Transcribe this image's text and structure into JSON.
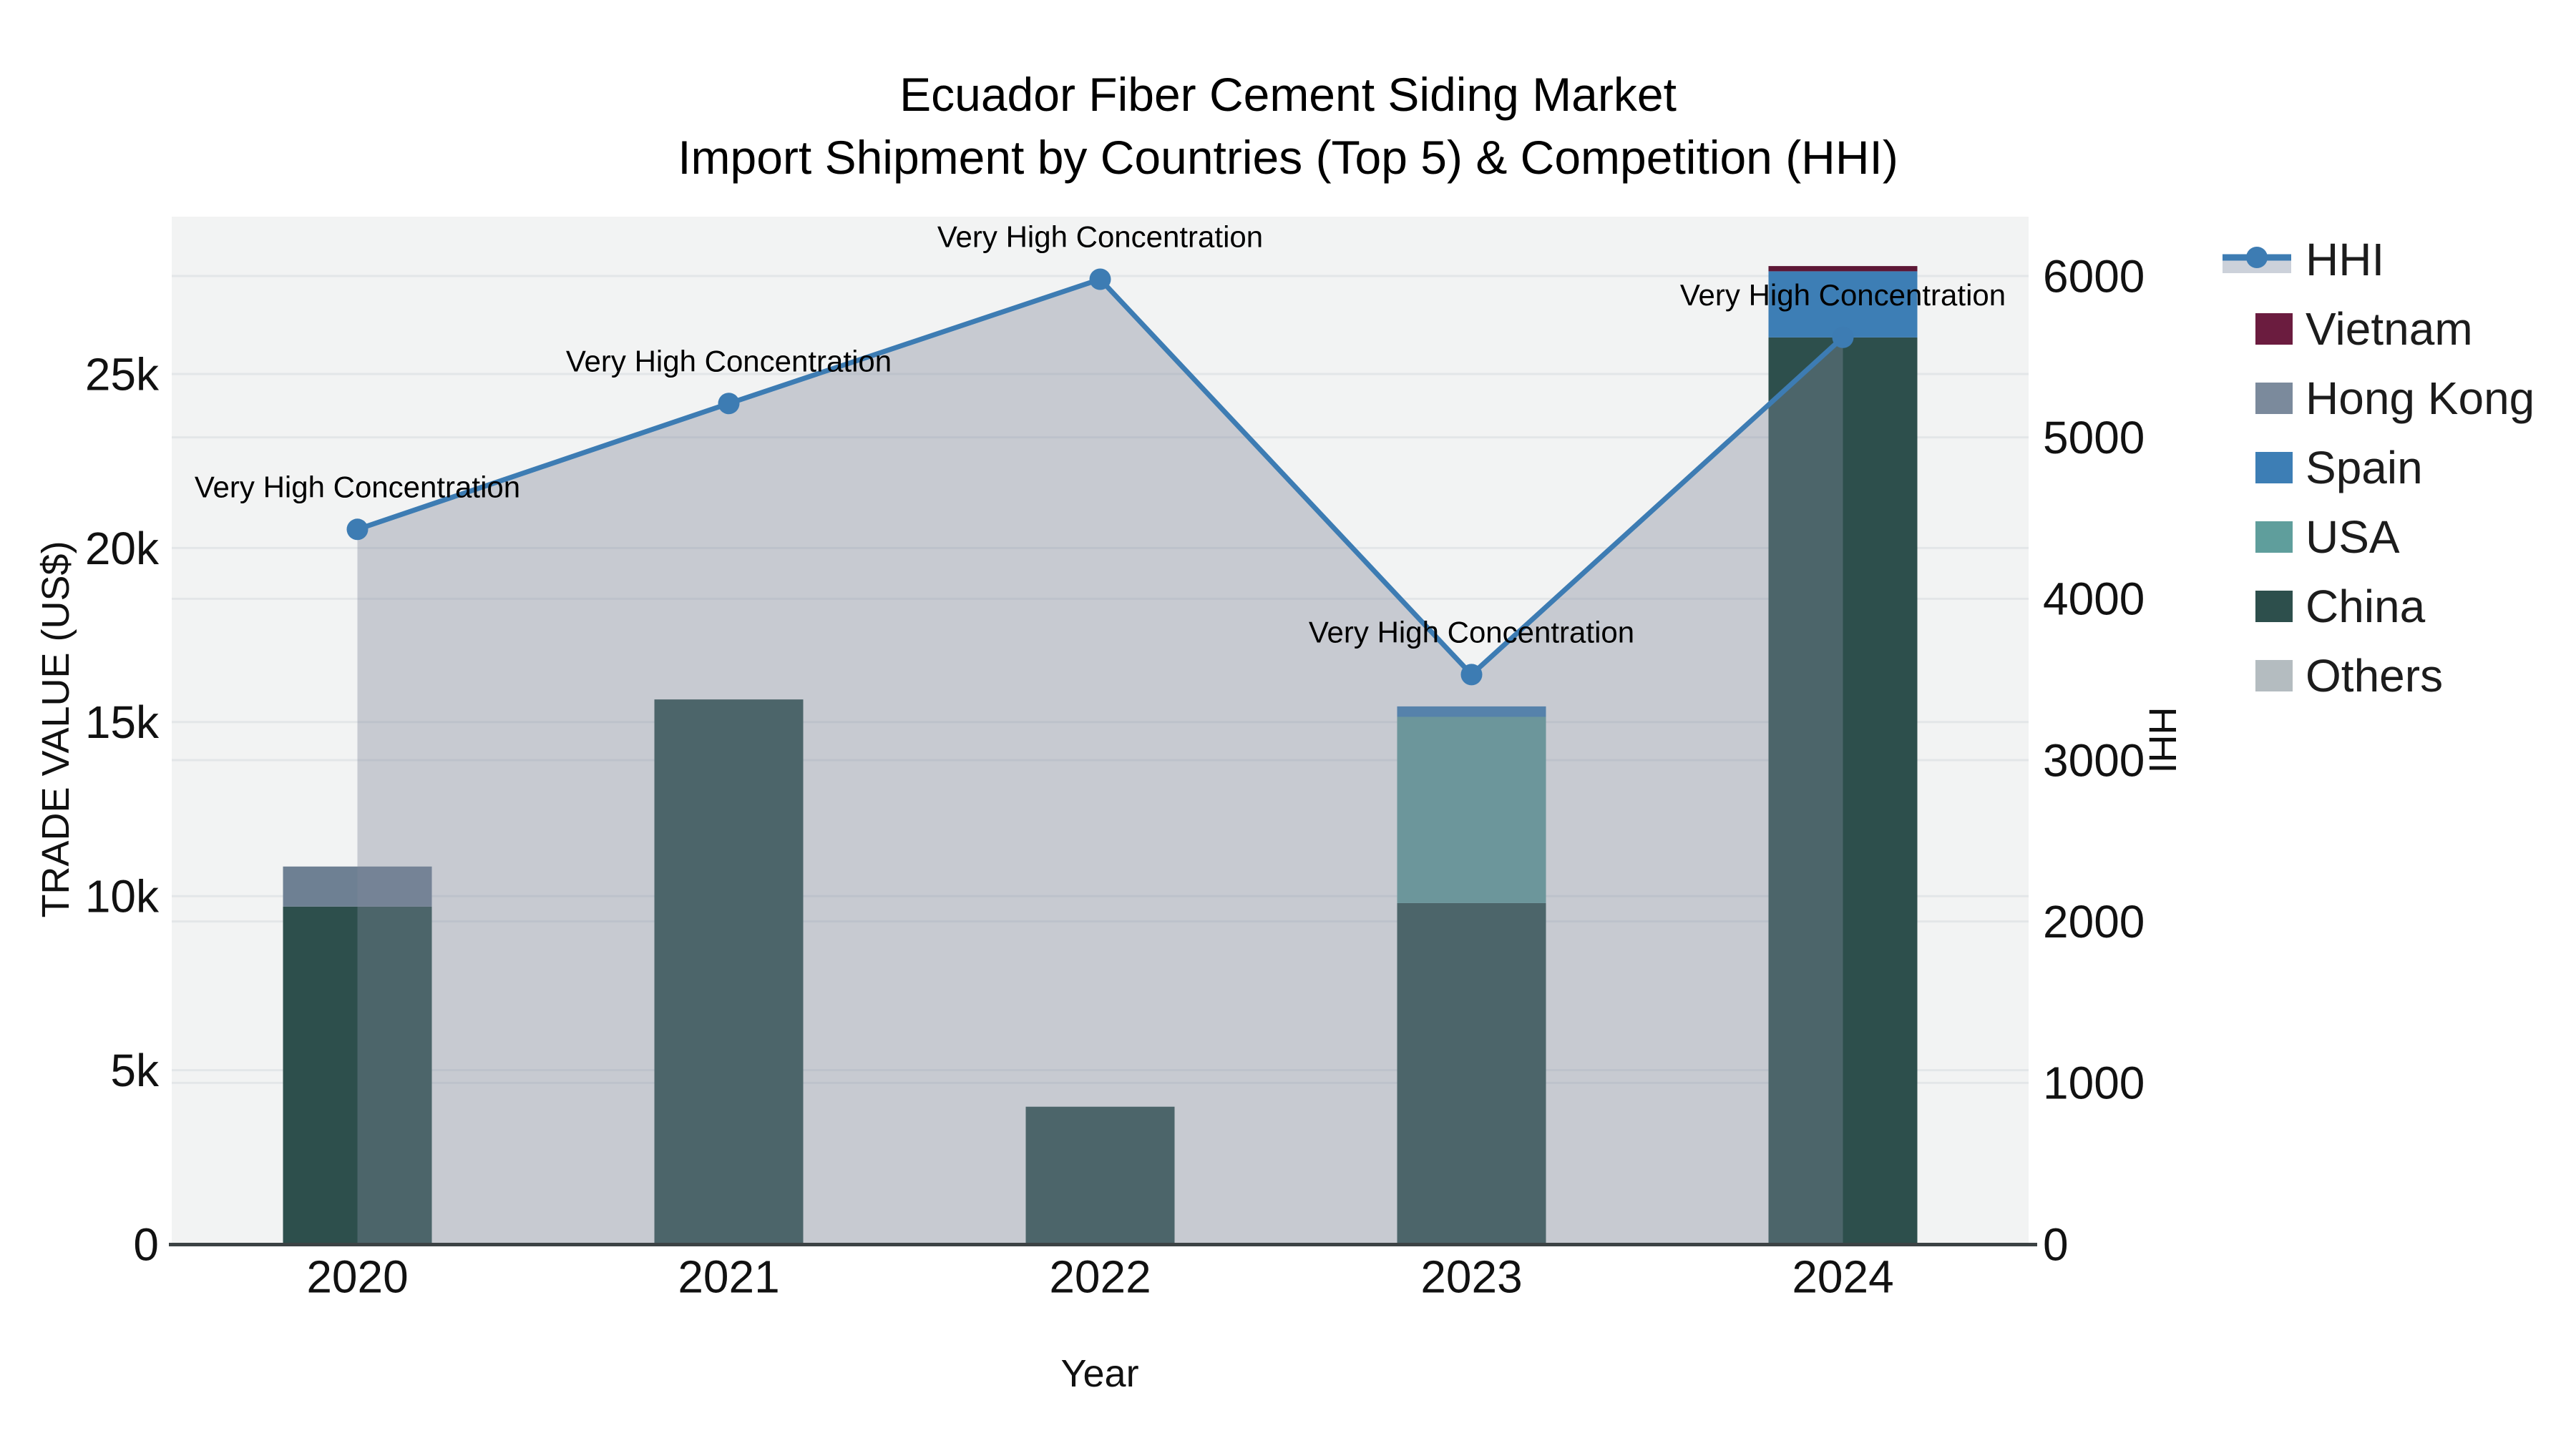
{
  "title": {
    "line1": "Ecuador Fiber Cement Siding Market",
    "line2": "Import Shipment by Countries (Top 5) & Competition (HHI)"
  },
  "axes": {
    "x": {
      "title": "Year",
      "ticks": [
        "2020",
        "2021",
        "2022",
        "2023",
        "2024"
      ]
    },
    "y_left": {
      "title": "TRADE VALUE (US$)",
      "ticks": [
        {
          "v": 0,
          "label": "0"
        },
        {
          "v": 5000,
          "label": "5k"
        },
        {
          "v": 10000,
          "label": "10k"
        },
        {
          "v": 15000,
          "label": "15k"
        },
        {
          "v": 20000,
          "label": "20k"
        },
        {
          "v": 25000,
          "label": "25k"
        }
      ]
    },
    "y_right": {
      "title": "HHI",
      "ticks": [
        {
          "v": 0,
          "label": "0"
        },
        {
          "v": 1000,
          "label": "1000"
        },
        {
          "v": 2000,
          "label": "2000"
        },
        {
          "v": 3000,
          "label": "3000"
        },
        {
          "v": 4000,
          "label": "4000"
        },
        {
          "v": 5000,
          "label": "5000"
        },
        {
          "v": 6000,
          "label": "6000"
        }
      ]
    }
  },
  "legend": {
    "items": [
      {
        "label": "HHI",
        "kind": "line",
        "color": "#3d7cb3",
        "fill_sample": "#ccd1da"
      },
      {
        "label": "Vietnam",
        "kind": "swatch",
        "color": "#6b1c3f"
      },
      {
        "label": "Hong Kong",
        "kind": "swatch",
        "color": "#7b8a9c"
      },
      {
        "label": "Spain",
        "kind": "swatch",
        "color": "#3d7eb5"
      },
      {
        "label": "USA",
        "kind": "swatch",
        "color": "#5f9e9c"
      },
      {
        "label": "China",
        "kind": "swatch",
        "color": "#2d4f4c"
      },
      {
        "label": "Others",
        "kind": "swatch",
        "color": "#b4bcc0"
      }
    ]
  },
  "colors": {
    "plot_bg": "#f2f3f3",
    "grid": "#e3e6e8",
    "axis_line": "#3c4244",
    "hhi_line": "#3d7cb3",
    "fill_overlay": "rgba(128,136,155,0.38)",
    "text": "#111111"
  },
  "chart_data": {
    "type": "combo: stacked bar (left axis) + line with area fill (right axis)",
    "title": "Ecuador Fiber Cement Siding Market — Import Shipment by Countries (Top 5) & Competition (HHI)",
    "xlabel": "Year",
    "ylabel_left": "TRADE VALUE (US$)",
    "ylabel_right": "HHI",
    "ylim_left": [
      0,
      25000
    ],
    "ylim_right": [
      0,
      6000
    ],
    "grid": true,
    "legend_position": "right",
    "categories": [
      "2020",
      "2021",
      "2022",
      "2023",
      "2024"
    ],
    "bar_series": [
      {
        "name": "China",
        "color": "#2d4f4c",
        "values": [
          9700,
          15650,
          3950,
          9800,
          26050
        ]
      },
      {
        "name": "USA",
        "color": "#5f9e9c",
        "values": [
          0,
          0,
          0,
          5350,
          0
        ]
      },
      {
        "name": "Spain",
        "color": "#3d7eb5",
        "values": [
          0,
          0,
          0,
          300,
          1900
        ]
      },
      {
        "name": "Hong Kong",
        "color": "#6e8093",
        "values": [
          1150,
          0,
          0,
          0,
          0
        ]
      },
      {
        "name": "Vietnam",
        "color": "#5d1735",
        "values": [
          0,
          0,
          0,
          0,
          150
        ]
      },
      {
        "name": "Others",
        "color": "#b4bcc0",
        "values": [
          0,
          0,
          0,
          0,
          0
        ]
      }
    ],
    "line_series": {
      "name": "HHI",
      "axis": "right",
      "color": "#3d7cb3",
      "values": [
        4430,
        5210,
        5980,
        3530,
        5620
      ]
    },
    "point_annotations": [
      "Very High Concentration",
      "Very High Concentration",
      "Very High Concentration",
      "Very High Concentration",
      "Very High Concentration"
    ]
  }
}
